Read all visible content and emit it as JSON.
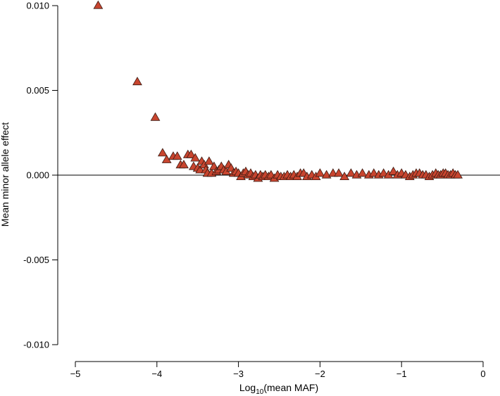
{
  "chart_data": {
    "type": "scatter",
    "title": "",
    "xlabel_main": "Log",
    "xlabel_sub": "10",
    "xlabel_rest": "(mean MAF)",
    "ylabel": "Mean minor allele effect",
    "xlim": [
      -5,
      0
    ],
    "ylim": [
      -0.01,
      0.01
    ],
    "x_ticks": [
      -5,
      -4,
      -3,
      -2,
      -1,
      0
    ],
    "x_tick_labels": [
      "−5",
      "−4",
      "−3",
      "−2",
      "−1",
      "0"
    ],
    "y_ticks": [
      -0.01,
      -0.005,
      0,
      0.005,
      0.01
    ],
    "y_tick_labels": [
      "-0.010",
      "-0.005",
      "0.000",
      "0.005",
      "0.010"
    ],
    "reference_line_y": 0,
    "grid": false,
    "marker_color": "#c8452f",
    "marker_edge": "#3a1a12",
    "points": [
      {
        "x": -4.72,
        "y": 0.01
      },
      {
        "x": -4.24,
        "y": 0.0055
      },
      {
        "x": -4.02,
        "y": 0.0034
      },
      {
        "x": -3.93,
        "y": 0.0013
      },
      {
        "x": -3.88,
        "y": 0.0009
      },
      {
        "x": -3.8,
        "y": 0.0011
      },
      {
        "x": -3.75,
        "y": 0.0011
      },
      {
        "x": -3.71,
        "y": 0.0006
      },
      {
        "x": -3.67,
        "y": 0.0006
      },
      {
        "x": -3.62,
        "y": 0.0012
      },
      {
        "x": -3.58,
        "y": 0.0012
      },
      {
        "x": -3.55,
        "y": 0.0005
      },
      {
        "x": -3.53,
        "y": 0.001
      },
      {
        "x": -3.5,
        "y": 0.0004
      },
      {
        "x": -3.47,
        "y": 0.0003
      },
      {
        "x": -3.45,
        "y": 0.0008
      },
      {
        "x": -3.42,
        "y": 0.0006
      },
      {
        "x": -3.4,
        "y": 0.0003
      },
      {
        "x": -3.38,
        "y": 0.0001
      },
      {
        "x": -3.36,
        "y": 0.0008
      },
      {
        "x": -3.33,
        "y": 0.0001
      },
      {
        "x": -3.3,
        "y": 0.0005
      },
      {
        "x": -3.27,
        "y": 0.0002
      },
      {
        "x": -3.24,
        "y": 0.0003
      },
      {
        "x": -3.21,
        "y": 0.0005
      },
      {
        "x": -3.18,
        "y": 0.0003
      },
      {
        "x": -3.15,
        "y": 0.0002
      },
      {
        "x": -3.12,
        "y": 0.0006
      },
      {
        "x": -3.09,
        "y": 0.0004
      },
      {
        "x": -3.06,
        "y": 0.0001
      },
      {
        "x": -3.03,
        "y": 0.0002
      },
      {
        "x": -3.0,
        "y": 0.0001
      },
      {
        "x": -2.97,
        "y": -0.0001
      },
      {
        "x": -2.94,
        "y": 0.0001
      },
      {
        "x": -2.91,
        "y": 0.0002
      },
      {
        "x": -2.88,
        "y": 0.0
      },
      {
        "x": -2.85,
        "y": 0.0001
      },
      {
        "x": -2.82,
        "y": -0.0001
      },
      {
        "x": -2.79,
        "y": 0.0
      },
      {
        "x": -2.76,
        "y": -0.0002
      },
      {
        "x": -2.73,
        "y": 0.0
      },
      {
        "x": -2.7,
        "y": -0.0001
      },
      {
        "x": -2.67,
        "y": 0.0
      },
      {
        "x": -2.63,
        "y": -0.0001
      },
      {
        "x": -2.6,
        "y": 0.0
      },
      {
        "x": -2.56,
        "y": -0.0002
      },
      {
        "x": -2.52,
        "y": 0.0
      },
      {
        "x": -2.48,
        "y": -0.0001
      },
      {
        "x": -2.44,
        "y": -0.0001
      },
      {
        "x": -2.4,
        "y": 0.0
      },
      {
        "x": -2.36,
        "y": -0.0001
      },
      {
        "x": -2.32,
        "y": 0.0
      },
      {
        "x": -2.28,
        "y": -0.0001
      },
      {
        "x": -2.24,
        "y": 0.0001
      },
      {
        "x": -2.2,
        "y": 0.0001
      },
      {
        "x": -2.16,
        "y": -0.0001
      },
      {
        "x": -2.1,
        "y": 0.0
      },
      {
        "x": -2.05,
        "y": -0.0001
      },
      {
        "x": -2.0,
        "y": 0.0001
      },
      {
        "x": -1.92,
        "y": 0.0
      },
      {
        "x": -1.84,
        "y": 0.0001
      },
      {
        "x": -1.77,
        "y": 0.0001
      },
      {
        "x": -1.7,
        "y": -0.0001
      },
      {
        "x": -1.62,
        "y": 0.0001
      },
      {
        "x": -1.55,
        "y": 0.0
      },
      {
        "x": -1.48,
        "y": 0.0001
      },
      {
        "x": -1.4,
        "y": 0.0
      },
      {
        "x": -1.34,
        "y": 0.0001
      },
      {
        "x": -1.28,
        "y": 0.0
      },
      {
        "x": -1.22,
        "y": 0.0001
      },
      {
        "x": -1.16,
        "y": 0.0
      },
      {
        "x": -1.1,
        "y": 0.0002
      },
      {
        "x": -1.05,
        "y": 0.0
      },
      {
        "x": -1.0,
        "y": 0.0001
      },
      {
        "x": -0.95,
        "y": 0.0
      },
      {
        "x": -0.9,
        "y": -0.0001
      },
      {
        "x": -0.86,
        "y": 0.0
      },
      {
        "x": -0.82,
        "y": 0.0001
      },
      {
        "x": -0.78,
        "y": 0.0001
      },
      {
        "x": -0.74,
        "y": 0.0
      },
      {
        "x": -0.7,
        "y": 0.0
      },
      {
        "x": -0.66,
        "y": -0.0001
      },
      {
        "x": -0.62,
        "y": 0.0
      },
      {
        "x": -0.58,
        "y": 0.0001
      },
      {
        "x": -0.55,
        "y": 0.0
      },
      {
        "x": -0.52,
        "y": 0.0
      },
      {
        "x": -0.49,
        "y": 0.0001
      },
      {
        "x": -0.46,
        "y": 0.0001
      },
      {
        "x": -0.43,
        "y": 0.0
      },
      {
        "x": -0.4,
        "y": 0.0
      },
      {
        "x": -0.37,
        "y": 0.0001
      },
      {
        "x": -0.34,
        "y": 0.0
      },
      {
        "x": -0.31,
        "y": 0.0
      }
    ]
  }
}
